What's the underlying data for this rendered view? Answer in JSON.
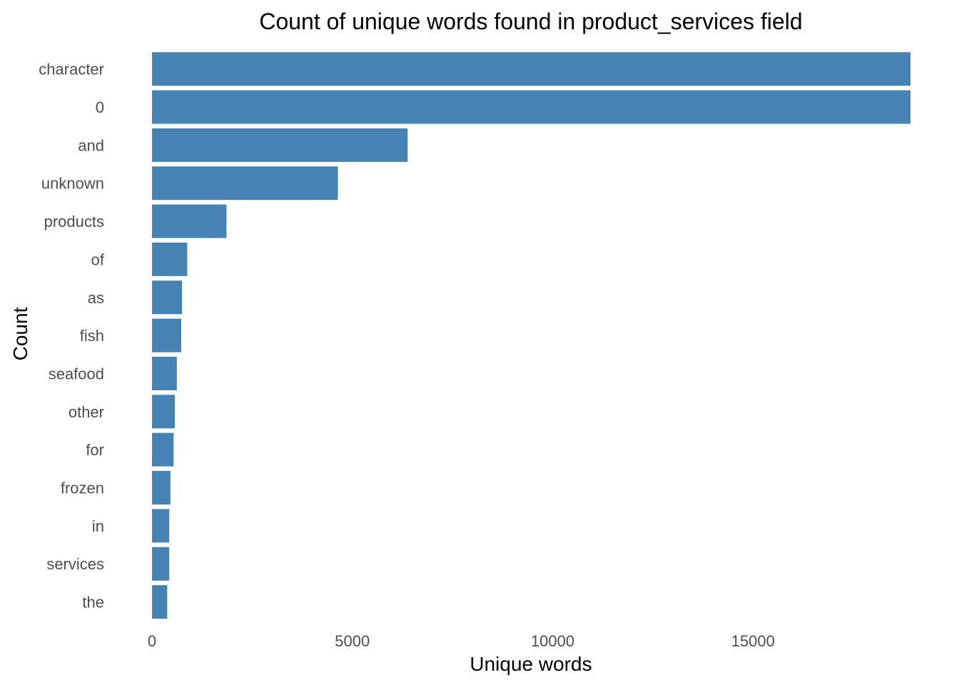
{
  "chart_data": {
    "type": "bar",
    "orientation": "horizontal",
    "title": "Count of unique words found in product_services field",
    "xlabel": "Unique words",
    "ylabel": "Count",
    "categories": [
      "character",
      "0",
      "and",
      "unknown",
      "products",
      "of",
      "as",
      "fish",
      "seafood",
      "other",
      "for",
      "frozen",
      "in",
      "services",
      "the"
    ],
    "values": [
      18930,
      18930,
      6380,
      4640,
      1860,
      880,
      750,
      730,
      620,
      570,
      540,
      460,
      430,
      430,
      380
    ],
    "xlim": [
      0,
      18930
    ],
    "xticks": [
      "0",
      "5000",
      "10000",
      "15000"
    ],
    "grid": false,
    "bar_color": "#4682B4"
  }
}
